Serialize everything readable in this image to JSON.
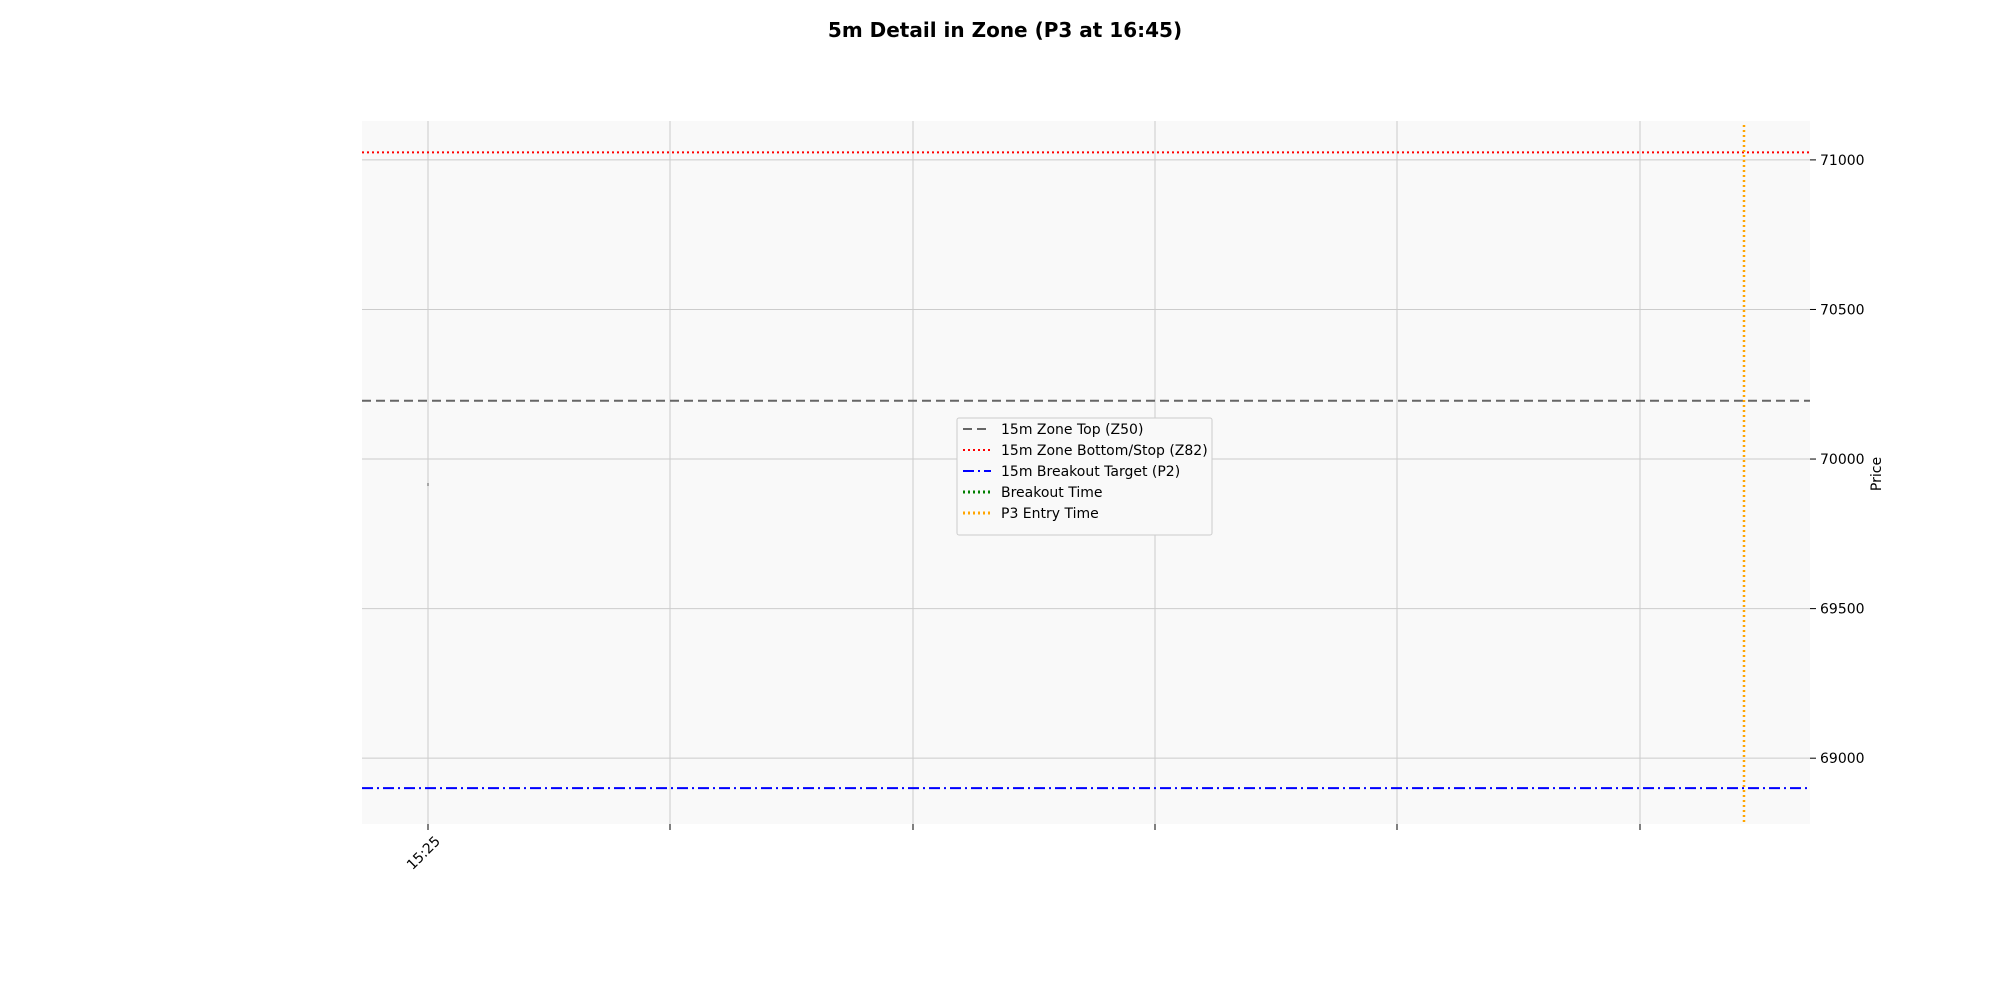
{
  "chart_data": {
    "type": "line",
    "title": "5m Detail in Zone (P3 at 16:45)",
    "xlabel": "",
    "ylabel": "Price",
    "x_tick_labels": [
      "15:25",
      "",
      "",
      "",
      "",
      ""
    ],
    "y_ticks": [
      69000,
      69500,
      70000,
      70500,
      71000
    ],
    "ylim": [
      68780,
      71130
    ],
    "grid": true,
    "legend_placement": "center",
    "series": [
      {
        "name": "15m Zone Top (Z50)",
        "kind": "hline",
        "value": 70195,
        "color": "#666666",
        "style": "dashed"
      },
      {
        "name": "15m Zone Bottom/Stop (Z82)",
        "kind": "hline",
        "value": 71025,
        "color": "#ff0000",
        "style": "dotted"
      },
      {
        "name": "15m Breakout Target (P2)",
        "kind": "hline",
        "value": 68900,
        "color": "#0000ff",
        "style": "dashdot"
      },
      {
        "name": "Breakout Time",
        "kind": "vline",
        "value": null,
        "color": "#008000",
        "style": "dotted"
      },
      {
        "name": "P3 Entry Time",
        "kind": "vline",
        "value": "16:45",
        "color": "#ffa500",
        "style": "dotted"
      }
    ],
    "price_data": [
      {
        "time": "15:25",
        "open": 69915,
        "high": 69920,
        "low": 69910,
        "close": 69915
      }
    ]
  }
}
